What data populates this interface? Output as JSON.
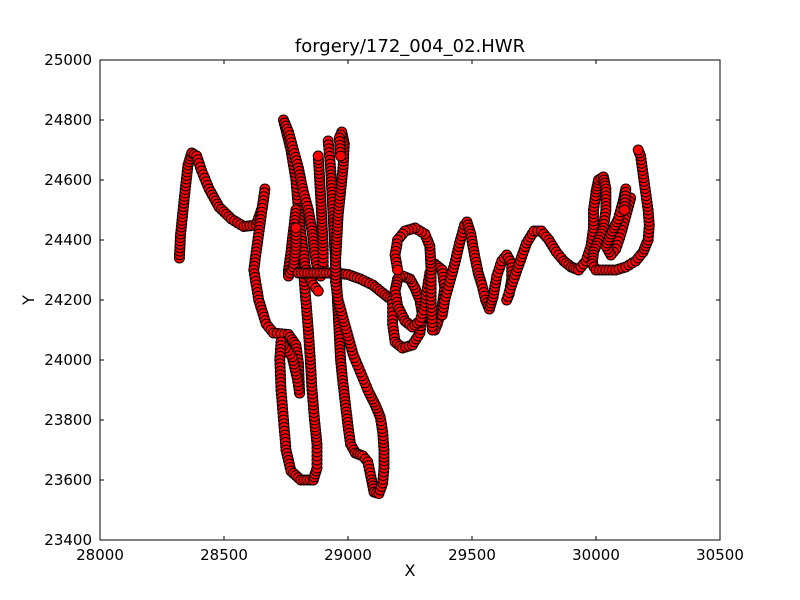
{
  "chart_data": {
    "type": "scatter",
    "title": "forgery/172_004_02.HWR",
    "xlabel": "X",
    "ylabel": "Y",
    "xlim": [
      28000,
      30500
    ],
    "ylim": [
      23400,
      25000
    ],
    "xticks": [
      28000,
      28500,
      29000,
      29500,
      30000,
      30500
    ],
    "yticks": [
      23400,
      23600,
      23800,
      24000,
      24200,
      24400,
      24600,
      24800,
      25000
    ],
    "xtick_labels": [
      "28000",
      "28500",
      "29000",
      "29500",
      "30000",
      "30500"
    ],
    "ytick_labels": [
      "23400",
      "23600",
      "23800",
      "24000",
      "24200",
      "24400",
      "24600",
      "24800",
      "25000"
    ],
    "grid": false,
    "legend": "none",
    "marker": "circle",
    "marker_face_color": "#ff0000",
    "marker_edge_color": "#000000",
    "strokes": [
      [
        [
          28320,
          24340
        ],
        [
          28325,
          24420
        ],
        [
          28335,
          24500
        ],
        [
          28345,
          24580
        ],
        [
          28355,
          24650
        ],
        [
          28370,
          24690
        ],
        [
          28390,
          24680
        ],
        [
          28410,
          24630
        ],
        [
          28440,
          24570
        ],
        [
          28480,
          24510
        ],
        [
          28530,
          24470
        ],
        [
          28580,
          24445
        ],
        [
          28630,
          24450
        ],
        [
          28655,
          24510
        ],
        [
          28665,
          24570
        ],
        [
          28650,
          24480
        ],
        [
          28630,
          24360
        ],
        [
          28620,
          24300
        ],
        [
          28640,
          24200
        ],
        [
          28670,
          24120
        ],
        [
          28700,
          24090
        ],
        [
          28760,
          24085
        ],
        [
          28790,
          24050
        ],
        [
          28800,
          23990
        ],
        [
          28805,
          23890
        ]
      ],
      [
        [
          28805,
          23890
        ],
        [
          28795,
          23940
        ],
        [
          28775,
          24010
        ],
        [
          28730,
          24060
        ],
        [
          28725,
          24000
        ],
        [
          28730,
          23900
        ],
        [
          28740,
          23800
        ],
        [
          28750,
          23700
        ],
        [
          28770,
          23630
        ],
        [
          28810,
          23600
        ],
        [
          28860,
          23600
        ],
        [
          28875,
          23640
        ],
        [
          28875,
          23720
        ],
        [
          28865,
          23800
        ],
        [
          28855,
          23900
        ],
        [
          28848,
          24000
        ],
        [
          28840,
          24100
        ],
        [
          28830,
          24200
        ],
        [
          28820,
          24300
        ],
        [
          28810,
          24400
        ],
        [
          28800,
          24500
        ],
        [
          28790,
          24600
        ],
        [
          28770,
          24700
        ],
        [
          28740,
          24800
        ],
        [
          28760,
          24760
        ],
        [
          28780,
          24700
        ],
        [
          28800,
          24640
        ],
        [
          28820,
          24560
        ],
        [
          28840,
          24500
        ],
        [
          28855,
          24430
        ],
        [
          28865,
          24360
        ],
        [
          28880,
          24290
        ],
        [
          28890,
          24280
        ],
        [
          28900,
          24300
        ],
        [
          28900,
          24380
        ],
        [
          28895,
          24460
        ],
        [
          28890,
          24540
        ],
        [
          28885,
          24610
        ],
        [
          28880,
          24680
        ]
      ],
      [
        [
          28800,
          24500
        ],
        [
          28810,
          24420
        ],
        [
          28820,
          24360
        ],
        [
          28830,
          24300
        ],
        [
          28840,
          24280
        ],
        [
          28860,
          24250
        ],
        [
          28880,
          24230
        ]
      ],
      [
        [
          28790,
          24500
        ],
        [
          28780,
          24430
        ],
        [
          28770,
          24360
        ],
        [
          28760,
          24300
        ],
        [
          28760,
          24280
        ],
        [
          28780,
          24310
        ],
        [
          28790,
          24380
        ],
        [
          28790,
          24440
        ]
      ],
      [
        [
          28800,
          24290
        ],
        [
          28850,
          24290
        ],
        [
          28900,
          24290
        ],
        [
          28950,
          24290
        ],
        [
          29000,
          24285
        ],
        [
          29050,
          24270
        ],
        [
          29100,
          24250
        ],
        [
          29130,
          24230
        ],
        [
          29160,
          24210
        ],
        [
          29180,
          24200
        ]
      ],
      [
        [
          28920,
          24730
        ],
        [
          28930,
          24640
        ],
        [
          28935,
          24560
        ],
        [
          28940,
          24480
        ],
        [
          28945,
          24400
        ],
        [
          28950,
          24320
        ],
        [
          28955,
          24240
        ],
        [
          28960,
          24160
        ],
        [
          28965,
          24080
        ],
        [
          28970,
          24000
        ],
        [
          28980,
          23920
        ],
        [
          28990,
          23850
        ],
        [
          29000,
          23780
        ],
        [
          29010,
          23720
        ],
        [
          29030,
          23690
        ],
        [
          29060,
          23680
        ],
        [
          29080,
          23660
        ],
        [
          29095,
          23600
        ],
        [
          29105,
          23560
        ],
        [
          29125,
          23555
        ],
        [
          29140,
          23590
        ],
        [
          29145,
          23640
        ],
        [
          29145,
          23700
        ],
        [
          29140,
          23760
        ],
        [
          29130,
          23810
        ],
        [
          29110,
          23850
        ],
        [
          29080,
          23900
        ],
        [
          29050,
          23960
        ],
        [
          29020,
          24020
        ],
        [
          29000,
          24080
        ],
        [
          28980,
          24140
        ],
        [
          28960,
          24200
        ],
        [
          28950,
          24260
        ],
        [
          28950,
          24330
        ],
        [
          28955,
          24400
        ],
        [
          28960,
          24480
        ],
        [
          28970,
          24560
        ],
        [
          28980,
          24640
        ],
        [
          28985,
          24720
        ],
        [
          28975,
          24760
        ],
        [
          28965,
          24740
        ],
        [
          28970,
          24680
        ]
      ],
      [
        [
          29180,
          24200
        ],
        [
          29180,
          24120
        ],
        [
          29190,
          24060
        ],
        [
          29220,
          24040
        ],
        [
          29260,
          24050
        ],
        [
          29290,
          24090
        ],
        [
          29300,
          24150
        ],
        [
          29290,
          24200
        ],
        [
          29270,
          24240
        ],
        [
          29250,
          24270
        ],
        [
          29220,
          24280
        ],
        [
          29200,
          24270
        ],
        [
          29190,
          24230
        ],
        [
          29200,
          24180
        ],
        [
          29230,
          24130
        ],
        [
          29260,
          24110
        ],
        [
          29290,
          24130
        ],
        [
          29310,
          24180
        ],
        [
          29320,
          24240
        ],
        [
          29330,
          24290
        ],
        [
          29350,
          24320
        ],
        [
          29380,
          24300
        ],
        [
          29390,
          24240
        ],
        [
          29380,
          24180
        ],
        [
          29360,
          24120
        ],
        [
          29350,
          24100
        ]
      ],
      [
        [
          29340,
          24100
        ],
        [
          29335,
          24200
        ],
        [
          29335,
          24300
        ],
        [
          29330,
          24380
        ],
        [
          29310,
          24420
        ],
        [
          29270,
          24440
        ],
        [
          29230,
          24430
        ],
        [
          29200,
          24400
        ],
        [
          29190,
          24350
        ],
        [
          29200,
          24300
        ]
      ],
      [
        [
          29380,
          24150
        ],
        [
          29390,
          24200
        ],
        [
          29410,
          24260
        ],
        [
          29430,
          24320
        ],
        [
          29450,
          24390
        ],
        [
          29470,
          24450
        ],
        [
          29480,
          24460
        ],
        [
          29495,
          24420
        ],
        [
          29510,
          24350
        ],
        [
          29525,
          24290
        ],
        [
          29540,
          24250
        ],
        [
          29555,
          24200
        ],
        [
          29570,
          24170
        ],
        [
          29585,
          24210
        ],
        [
          29600,
          24280
        ],
        [
          29620,
          24330
        ],
        [
          29640,
          24350
        ],
        [
          29660,
          24320
        ],
        [
          29660,
          24270
        ],
        [
          29650,
          24220
        ],
        [
          29640,
          24200
        ],
        [
          29660,
          24250
        ],
        [
          29690,
          24320
        ],
        [
          29720,
          24390
        ],
        [
          29750,
          24430
        ],
        [
          29780,
          24430
        ],
        [
          29810,
          24400
        ],
        [
          29840,
          24360
        ],
        [
          29870,
          24330
        ],
        [
          29900,
          24310
        ],
        [
          29930,
          24300
        ],
        [
          29960,
          24330
        ],
        [
          29980,
          24380
        ],
        [
          29990,
          24440
        ],
        [
          29990,
          24500
        ],
        [
          30000,
          24560
        ],
        [
          30010,
          24600
        ],
        [
          30030,
          24610
        ],
        [
          30040,
          24570
        ],
        [
          30040,
          24500
        ],
        [
          30030,
          24440
        ],
        [
          30010,
          24400
        ],
        [
          29990,
          24360
        ],
        [
          29985,
          24320
        ],
        [
          30000,
          24300
        ],
        [
          30040,
          24300
        ],
        [
          30080,
          24300
        ],
        [
          30120,
          24310
        ],
        [
          30160,
          24330
        ],
        [
          30190,
          24360
        ],
        [
          30210,
          24400
        ],
        [
          30215,
          24450
        ],
        [
          30210,
          24500
        ],
        [
          30200,
          24560
        ],
        [
          30190,
          24620
        ],
        [
          30180,
          24680
        ],
        [
          30170,
          24700
        ]
      ],
      [
        [
          30140,
          24540
        ],
        [
          30120,
          24480
        ],
        [
          30100,
          24420
        ],
        [
          30080,
          24370
        ],
        [
          30060,
          24350
        ],
        [
          30040,
          24380
        ],
        [
          30060,
          24420
        ],
        [
          30090,
          24470
        ],
        [
          30110,
          24530
        ],
        [
          30120,
          24570
        ],
        [
          30115,
          24500
        ]
      ]
    ]
  }
}
